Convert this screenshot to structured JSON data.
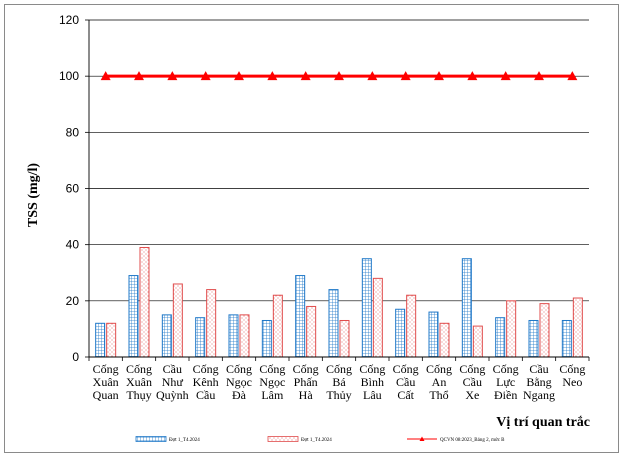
{
  "chart_data": {
    "type": "bar",
    "ylabel": "TSS (mg/l)",
    "xlabel": "Vị trí quan trắc",
    "ylim": [
      0,
      120
    ],
    "yticks": [
      0,
      20,
      40,
      60,
      80,
      100,
      120
    ],
    "grid": "horizontal",
    "legend_position": "bottom",
    "categories": [
      [
        "Cống",
        "Xuân",
        "Quan"
      ],
      [
        "Cống",
        "Xuân",
        "Thụy"
      ],
      [
        "Cầu",
        "Như",
        "Quỳnh"
      ],
      [
        "Cống",
        "Kênh",
        "Cầu"
      ],
      [
        "Cống",
        "Ngọc",
        "Đà"
      ],
      [
        "Cống",
        "Ngọc",
        "Lâm"
      ],
      [
        "Cống",
        "Phấn",
        "Hà"
      ],
      [
        "Cống",
        "Bá",
        "Thủy"
      ],
      [
        "Cống",
        "Bình",
        "Lâu"
      ],
      [
        "Cống",
        "Cầu",
        "Cất"
      ],
      [
        "Cống",
        "An",
        "Thổ"
      ],
      [
        "Cống",
        "Cầu",
        "Xe"
      ],
      [
        "Cống",
        "Lực",
        "Điền"
      ],
      [
        "Cầu",
        "Bằng",
        "Ngang"
      ],
      [
        "Cống",
        "Neo"
      ]
    ],
    "series": [
      {
        "name": "Đợt 1_T4.2024",
        "values": [
          12,
          29,
          15,
          14,
          15,
          13,
          29,
          24,
          35,
          17,
          16,
          35,
          14,
          13,
          13
        ],
        "color": "#1f78c8",
        "fill": "grid"
      },
      {
        "name": "Đợt 1_T4.2024",
        "values": [
          12,
          39,
          26,
          24,
          15,
          22,
          18,
          13,
          28,
          22,
          12,
          11,
          20,
          19,
          21
        ],
        "color": "#e04b4b",
        "fill": "dots"
      },
      {
        "name": "QCVN 08:2023_Bảng 2, mức B",
        "type": "line",
        "values": [
          100,
          100,
          100,
          100,
          100,
          100,
          100,
          100,
          100,
          100,
          100,
          100,
          100,
          100,
          100
        ],
        "color": "#ff0000",
        "marker": "triangle"
      }
    ]
  }
}
